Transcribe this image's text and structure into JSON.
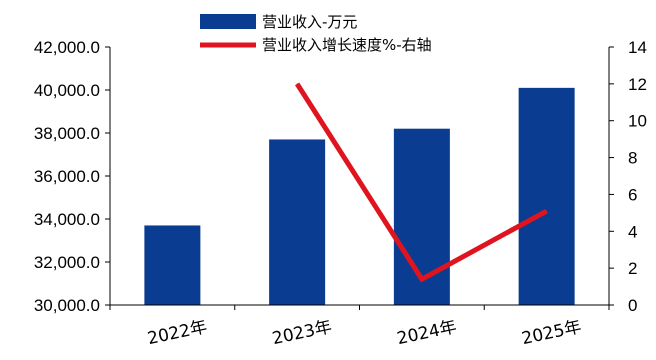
{
  "chart_data": {
    "type": "bar",
    "categories": [
      "2022年",
      "2023年",
      "2024年",
      "2025年"
    ],
    "series": [
      {
        "name": "营业收入-万元",
        "type": "bar",
        "axis": "left",
        "values": [
          33700,
          37700,
          38200,
          40100
        ]
      },
      {
        "name": "营业收入增长速度%-右轴",
        "type": "line",
        "axis": "right",
        "values": [
          null,
          12.0,
          1.4,
          5.1
        ]
      }
    ],
    "left_axis": {
      "ylim": [
        30000,
        42000
      ],
      "ticks": [
        30000,
        32000,
        34000,
        36000,
        38000,
        40000,
        42000
      ],
      "tick_labels": [
        "30,000.0",
        "32,000.0",
        "34,000.0",
        "36,000.0",
        "38,000.0",
        "40,000.0",
        "42,000.0"
      ]
    },
    "right_axis": {
      "ylim": [
        0,
        14
      ],
      "ticks": [
        0,
        2,
        4,
        6,
        8,
        10,
        12,
        14
      ],
      "tick_labels": [
        "0",
        "2",
        "4",
        "6",
        "8",
        "10",
        "12",
        "14"
      ]
    },
    "title": "",
    "xlabel": "",
    "ylabel": "",
    "grid": false,
    "legend_position": "top-center",
    "colors": {
      "bar": "#0a3d91",
      "line": "#e0141e",
      "axis": "#000000"
    }
  }
}
